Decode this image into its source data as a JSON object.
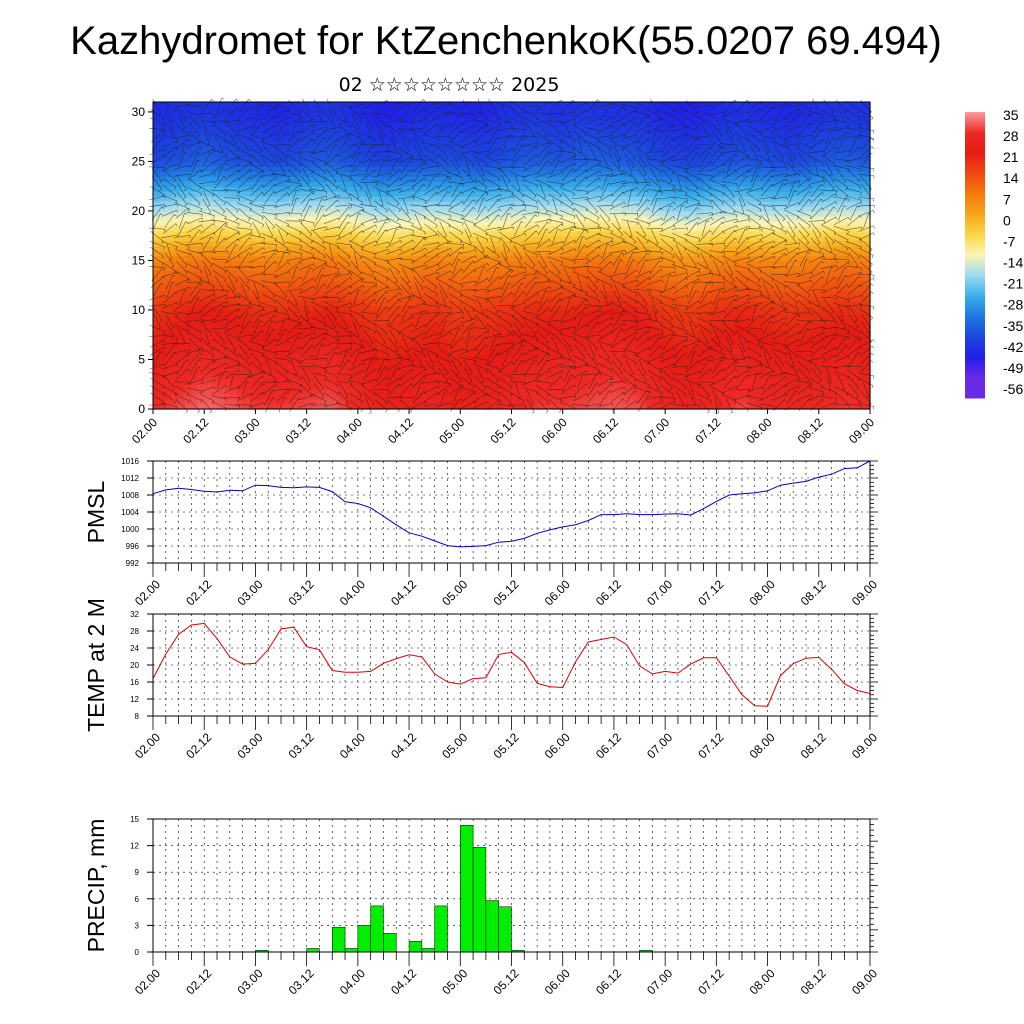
{
  "title": "Kazhydromet for KtZenchenkoK(55.0207 69.494)",
  "subtitle": "02 ☆☆☆☆☆☆☆☆ 2025",
  "time_ticks": [
    "02.00",
    "02.12",
    "03.00",
    "03.12",
    "04.00",
    "04.12",
    "05.00",
    "05.12",
    "06.00",
    "06.12",
    "07.00",
    "07.12",
    "08.00",
    "08.12",
    "09.00"
  ],
  "chart_data": [
    {
      "type": "heatmap",
      "name": "temperature-cross-section",
      "y_ticks": [
        "0",
        "5",
        "10",
        "15",
        "20",
        "25",
        "30"
      ],
      "ylim": [
        0,
        31
      ],
      "x": [
        2.0,
        2.25,
        2.5,
        2.75,
        3.0,
        3.25,
        3.5,
        3.75,
        4.0,
        4.25,
        4.5,
        4.75,
        5.0,
        5.25,
        5.5,
        5.75,
        6.0,
        6.25,
        6.5,
        6.75,
        7.0,
        7.25,
        7.5,
        7.75,
        8.0,
        8.25,
        8.5,
        8.75,
        9.0
      ],
      "levels": [
        0,
        5,
        10,
        15,
        20,
        25,
        30
      ],
      "values": [
        [
          28,
          30,
          32,
          31,
          29,
          29,
          30,
          31,
          27,
          24,
          25,
          26,
          24,
          25,
          27,
          29,
          29,
          30,
          31,
          30,
          26,
          25,
          27,
          30,
          27,
          26,
          27,
          29,
          28
        ],
        [
          22,
          25,
          27,
          26,
          24,
          24,
          25,
          26,
          23,
          20,
          21,
          22,
          20,
          21,
          23,
          24,
          25,
          26,
          27,
          26,
          22,
          21,
          23,
          25,
          23,
          22,
          23,
          24,
          23
        ],
        [
          17,
          19,
          21,
          20,
          18,
          18,
          19,
          20,
          18,
          16,
          17,
          18,
          16,
          17,
          18,
          19,
          19,
          20,
          21,
          20,
          17,
          16,
          18,
          19,
          18,
          17,
          18,
          19,
          18
        ],
        [
          5,
          7,
          8,
          7,
          6,
          6,
          7,
          7,
          5,
          3,
          4,
          6,
          5,
          5,
          6,
          7,
          7,
          8,
          8,
          7,
          4,
          3,
          5,
          6,
          5,
          5,
          6,
          7,
          6
        ],
        [
          -20,
          -18,
          -17,
          -18,
          -19,
          -19,
          -18,
          -17,
          -19,
          -21,
          -20,
          -19,
          -20,
          -20,
          -19,
          -18,
          -18,
          -17,
          -17,
          -18,
          -21,
          -22,
          -20,
          -19,
          -20,
          -20,
          -19,
          -18,
          -19
        ],
        [
          -42,
          -40,
          -38,
          -40,
          -41,
          -42,
          -40,
          -39,
          -41,
          -43,
          -42,
          -41,
          -41,
          -42,
          -40,
          -39,
          -40,
          -38,
          -39,
          -40,
          -42,
          -43,
          -41,
          -40,
          -41,
          -42,
          -40,
          -39,
          -40
        ],
        [
          -47,
          -46,
          -45,
          -46,
          -47,
          -48,
          -46,
          -45,
          -47,
          -49,
          -48,
          -47,
          -48,
          -48,
          -46,
          -45,
          -46,
          -45,
          -46,
          -46,
          -48,
          -49,
          -47,
          -46,
          -47,
          -48,
          -46,
          -45,
          -46
        ]
      ],
      "colorbar": {
        "labels": [
          "35",
          "28",
          "21",
          "14",
          "7",
          "0",
          "-7",
          "-14",
          "-21",
          "-28",
          "-35",
          "-42",
          "-49",
          "-56"
        ],
        "stops": [
          "#fb9b9f",
          "#ee2a25",
          "#e51b14",
          "#ef4a10",
          "#f57a0d",
          "#f8a61c",
          "#fbd646",
          "#fdf5b5",
          "#9cd9f0",
          "#3aaeea",
          "#1f78e0",
          "#1c46dd",
          "#2020e8",
          "#6a2be6"
        ]
      }
    },
    {
      "type": "line",
      "name": "pmsl",
      "ylabel": "PMSL",
      "y_ticks": [
        "992",
        "996",
        "1000",
        "1004",
        "1008",
        "1012",
        "1016"
      ],
      "ylim": [
        992,
        1016
      ],
      "color": "#0000cc",
      "x": [
        2.0,
        2.125,
        2.25,
        2.375,
        2.5,
        2.625,
        2.75,
        2.875,
        3.0,
        3.125,
        3.25,
        3.375,
        3.5,
        3.625,
        3.75,
        3.875,
        4.0,
        4.125,
        4.25,
        4.375,
        4.5,
        4.625,
        4.75,
        4.875,
        5.0,
        5.125,
        5.25,
        5.375,
        5.5,
        5.625,
        5.75,
        5.875,
        6.0,
        6.125,
        6.25,
        6.375,
        6.5,
        6.625,
        6.75,
        6.875,
        7.0,
        7.125,
        7.25,
        7.375,
        7.5,
        7.625,
        7.75,
        7.875,
        8.0,
        8.125,
        8.25,
        8.375,
        8.5,
        8.625,
        8.75,
        8.875,
        9.0
      ],
      "values": [
        1008.3,
        1009.2,
        1009.6,
        1009.3,
        1008.9,
        1008.7,
        1009.1,
        1009.0,
        1010.3,
        1010.2,
        1009.8,
        1009.7,
        1009.9,
        1009.8,
        1008.8,
        1006.4,
        1006.0,
        1005.0,
        1003.0,
        1001.0,
        999.1,
        998.3,
        997.2,
        996.1,
        995.8,
        995.9,
        996.1,
        996.9,
        997.1,
        997.8,
        999.0,
        999.8,
        1000.5,
        1001.0,
        1002.0,
        1003.4,
        1003.4,
        1003.6,
        1003.4,
        1003.4,
        1003.5,
        1003.6,
        1003.3,
        1004.8,
        1006.5,
        1008.0,
        1008.3,
        1008.5,
        1009.0,
        1010.3,
        1010.8,
        1011.2,
        1012.2,
        1012.9,
        1014.2,
        1014.4,
        1016.0
      ]
    },
    {
      "type": "line",
      "name": "temp-2m",
      "ylabel": "TEMP at 2 M",
      "y_ticks": [
        "8",
        "12",
        "16",
        "20",
        "24",
        "28",
        "32"
      ],
      "ylim": [
        8,
        32
      ],
      "color": "#dd0000",
      "x": [
        2.0,
        2.125,
        2.25,
        2.375,
        2.5,
        2.625,
        2.75,
        2.875,
        3.0,
        3.125,
        3.25,
        3.375,
        3.5,
        3.625,
        3.75,
        3.875,
        4.0,
        4.125,
        4.25,
        4.375,
        4.5,
        4.625,
        4.75,
        4.875,
        5.0,
        5.125,
        5.25,
        5.375,
        5.5,
        5.625,
        5.75,
        5.875,
        6.0,
        6.125,
        6.25,
        6.375,
        6.5,
        6.625,
        6.75,
        6.875,
        7.0,
        7.125,
        7.25,
        7.375,
        7.5,
        7.625,
        7.75,
        7.875,
        8.0,
        8.125,
        8.25,
        8.375,
        8.5,
        8.625,
        8.75,
        8.875,
        9.0
      ],
      "values": [
        16.8,
        22.6,
        27.2,
        29.4,
        29.8,
        26.2,
        21.9,
        20.2,
        20.4,
        23.6,
        28.5,
        28.9,
        24.3,
        23.6,
        18.7,
        18.3,
        18.3,
        18.5,
        20.4,
        21.5,
        22.4,
        21.9,
        17.9,
        16.0,
        15.5,
        16.8,
        17.0,
        22.5,
        23.0,
        20.6,
        15.7,
        14.9,
        14.7,
        20.7,
        25.4,
        26.0,
        26.6,
        24.8,
        19.8,
        17.9,
        18.5,
        18.1,
        20.2,
        21.7,
        21.7,
        17.4,
        13.0,
        10.4,
        10.3,
        17.5,
        20.3,
        21.6,
        21.8,
        19.0,
        15.6,
        14.0,
        13.3
      ]
    },
    {
      "type": "bar",
      "name": "precip",
      "ylabel": "PRECIP, mm",
      "y_ticks": [
        "0",
        "3",
        "6",
        "9",
        "12",
        "15"
      ],
      "ylim": [
        0,
        15
      ],
      "color": "#00ee00",
      "x": [
        2.0,
        2.125,
        2.25,
        2.375,
        2.5,
        2.625,
        2.75,
        2.875,
        3.0,
        3.125,
        3.25,
        3.375,
        3.5,
        3.625,
        3.75,
        3.875,
        4.0,
        4.125,
        4.25,
        4.375,
        4.5,
        4.625,
        4.75,
        4.875,
        5.0,
        5.125,
        5.25,
        5.375,
        5.5,
        5.625,
        5.75,
        5.875,
        6.0,
        6.125,
        6.25,
        6.375,
        6.5,
        6.625,
        6.75,
        6.875,
        7.0,
        7.125,
        7.25,
        7.375,
        7.5,
        7.625,
        7.75,
        7.875,
        8.0,
        8.125,
        8.25,
        8.375,
        8.5,
        8.625,
        8.75,
        8.875
      ],
      "values": [
        0,
        0,
        0,
        0,
        0,
        0,
        0,
        0,
        0.2,
        0,
        0,
        0,
        0.4,
        0,
        2.8,
        0.4,
        3.0,
        5.2,
        2.1,
        0,
        1.2,
        0.4,
        5.2,
        0,
        14.3,
        11.8,
        5.8,
        5.1,
        0.2,
        0,
        0,
        0,
        0,
        0,
        0,
        0,
        0,
        0,
        0.2,
        0,
        0,
        0,
        0,
        0,
        0,
        0,
        0,
        0,
        0,
        0,
        0,
        0,
        0,
        0,
        0,
        0
      ]
    }
  ]
}
